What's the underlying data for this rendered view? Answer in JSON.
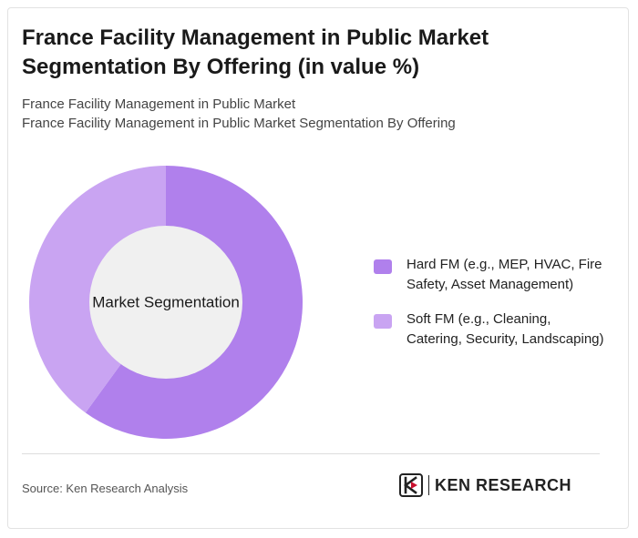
{
  "header": {
    "title_line1": "France Facility Management in Public Market",
    "title_line2": "Segmentation By Offering (in value %)",
    "subtitle_line1": "France Facility Management in Public Market",
    "subtitle_line2": "France Facility Management in Public Market Segmentation By Offering"
  },
  "chart_data": {
    "type": "pie",
    "donut": true,
    "center_label": "Market Segmentation",
    "categories": [
      "Hard FM (e.g., MEP, HVAC, Fire Safety, Asset Management)",
      "Soft FM (e.g., Cleaning, Catering, Security, Landscaping)"
    ],
    "values": [
      60,
      40
    ],
    "colors": [
      "#b080ec",
      "#c9a4f2"
    ],
    "legend_placement": "right"
  },
  "legend": {
    "items": [
      {
        "line1": "Hard FM (e.g., MEP, HVAC, Fire",
        "line2": "Safety, Asset Management)",
        "color": "#b080ec"
      },
      {
        "line1": "Soft FM (e.g., Cleaning,",
        "line2": "Catering, Security, Landscaping)",
        "color": "#c9a4f2"
      }
    ]
  },
  "footer": {
    "source": "Source: Ken Research Analysis",
    "brand": "KEN RESEARCH",
    "logo_icon": "ken-research-logo-icon"
  },
  "colors": {
    "center_fill": "#f0f0f0"
  }
}
